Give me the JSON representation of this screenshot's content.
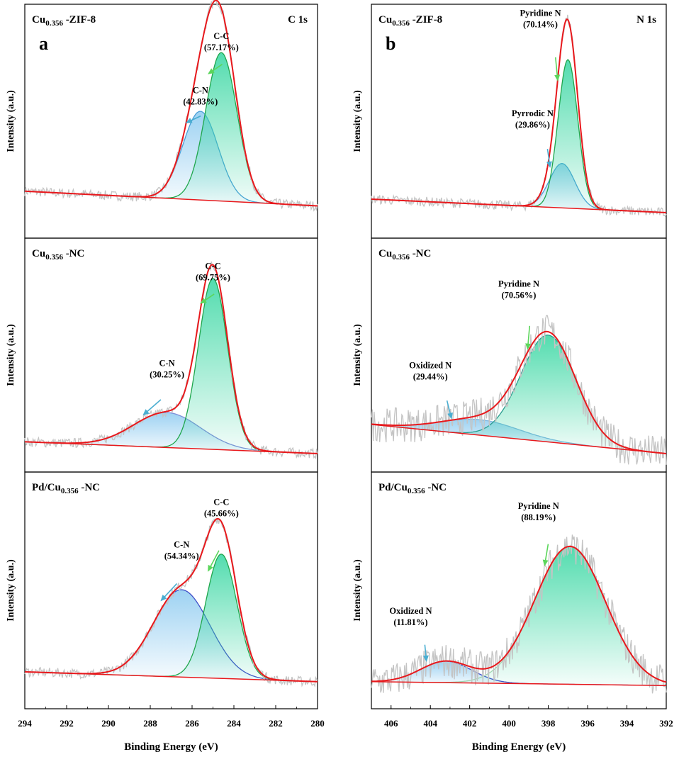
{
  "chart_data": [
    {
      "panel": "a",
      "type": "line",
      "spectrum": "C 1s",
      "xlabel": "Binding Energy (eV)",
      "ylabel": "Intensity (a.u.)",
      "xlim": [
        294,
        280
      ],
      "x_ticks": [
        "294",
        "292",
        "290",
        "288",
        "286",
        "284",
        "282",
        "280"
      ],
      "reversed_x": true,
      "subplots": [
        {
          "sample": "Cu0.356 -ZIF-8",
          "sample_main": "Cu",
          "sample_sub": "0.356",
          "sample_rest": " -ZIF-8",
          "background": [
            [
              293.8,
              0.11
            ],
            [
              280,
              0.035
            ]
          ],
          "envelope_peak": 0.98,
          "components": [
            {
              "name": "C-N",
              "label": "C-N",
              "percent": "(42.83%)",
              "center": 285.6,
              "sigma": 0.85,
              "height": 0.46,
              "color": "#4a9fd8",
              "fill": "#9fd0f2"
            },
            {
              "name": "C-C",
              "label": "C-C",
              "percent": "(57.17%)",
              "center": 284.6,
              "sigma": 0.75,
              "height": 0.77,
              "color": "#1fa64c",
              "fill": "#3dd9a0"
            }
          ],
          "annotations": [
            {
              "for": "C-N",
              "text_x": 285.6,
              "text_y": 0.62,
              "arrow_color": "#4aaed1"
            },
            {
              "for": "C-C",
              "text_x": 284.6,
              "text_y": 0.9,
              "arrow_color": "#5bd65b"
            }
          ]
        },
        {
          "sample": "Cu0.356 -NC",
          "sample_main": "Cu",
          "sample_sub": "0.356",
          "sample_rest": " -NC",
          "background": [
            [
              293.8,
              0.06
            ],
            [
              280,
              0.0
            ]
          ],
          "components": [
            {
              "name": "C-N",
              "label": "C-N",
              "percent": "(30.25%)",
              "center": 287.2,
              "sigma": 1.6,
              "height": 0.18,
              "color": "#7d8fd8",
              "fill": "#9fd0f2"
            },
            {
              "name": "C-C",
              "label": "C-C",
              "percent": "(69.75%)",
              "center": 285.0,
              "sigma": 0.7,
              "height": 0.88,
              "color": "#1fa64c",
              "fill": "#3dd9a0"
            }
          ],
          "annotations": [
            {
              "for": "C-N",
              "text_x": 287.2,
              "text_y": 0.45,
              "arrow_color": "#4aaed1"
            },
            {
              "for": "C-C",
              "text_x": 285.0,
              "text_y": 0.95,
              "arrow_color": "#5bd65b"
            }
          ]
        },
        {
          "sample": "Pd/Cu0.356 -NC",
          "sample_main": "Pd/Cu",
          "sample_sub": "0.356",
          "sample_rest": " -NC",
          "background": [
            [
              293.8,
              0.08
            ],
            [
              280,
              0.03
            ]
          ],
          "components": [
            {
              "name": "C-N",
              "label": "C-N",
              "percent": "(54.34%)",
              "center": 286.5,
              "sigma": 1.35,
              "height": 0.45,
              "color": "#3f4fc8",
              "fill": "#9fd0f2"
            },
            {
              "name": "C-C",
              "label": "C-C",
              "percent": "(45.66%)",
              "center": 284.6,
              "sigma": 0.75,
              "height": 0.64,
              "color": "#1fa64c",
              "fill": "#3dd9a0"
            }
          ],
          "annotations": [
            {
              "for": "C-N",
              "text_x": 286.5,
              "text_y": 0.72,
              "arrow_color": "#4aaed1"
            },
            {
              "for": "C-C",
              "text_x": 284.6,
              "text_y": 0.94,
              "arrow_color": "#5bd65b"
            }
          ]
        }
      ]
    },
    {
      "panel": "b",
      "type": "line",
      "spectrum": "N 1s",
      "xlabel": "Binding Energy (eV)",
      "ylabel": "Intensity (a.u.)",
      "xlim": [
        407,
        392
      ],
      "x_ticks": [
        "406",
        "404",
        "402",
        "400",
        "398",
        "396",
        "394",
        "392"
      ],
      "reversed_x": true,
      "subplots": [
        {
          "sample": "Cu0.356 -ZIF-8",
          "sample_main": "Cu",
          "sample_sub": "0.356",
          "sample_rest": " -ZIF-8",
          "background": [
            [
              407,
              0.07
            ],
            [
              392,
              0.0
            ]
          ],
          "components": [
            {
              "name": "Pyrrodic N",
              "label": "Pyrrodic N",
              "percent": "(29.86%)",
              "center": 397.3,
              "sigma": 0.65,
              "height": 0.23,
              "color": "#4a9fd8",
              "fill": "#9fd0f2"
            },
            {
              "name": "Pyridine N",
              "label": "Pyridine N",
              "percent": "(70.14%)",
              "center": 397.0,
              "sigma": 0.5,
              "height": 0.77,
              "color": "#1fa64c",
              "fill": "#3dd9a0"
            }
          ],
          "annotations": [
            {
              "for": "Pyrrodic N",
              "text_x": 398.8,
              "text_y": 0.5,
              "arrow_color": "#4aaed1"
            },
            {
              "for": "Pyridine N",
              "text_x": 398.4,
              "text_y": 1.02,
              "arrow_color": "#5bd65b"
            }
          ]
        },
        {
          "sample": "Cu0.356 -NC",
          "sample_main": "Cu",
          "sample_sub": "0.356",
          "sample_rest": " -NC",
          "background": [
            [
              407,
              0.15
            ],
            [
              392,
              0.0
            ]
          ],
          "components": [
            {
              "name": "Oxidized N",
              "label": "Oxidized N",
              "percent": "(29.44%)",
              "center": 401.5,
              "sigma": 2.0,
              "height": 0.08,
              "color": "#7db6e0",
              "fill": "#9fd0f2"
            },
            {
              "name": "Pyridine N",
              "label": "Pyridine N",
              "percent": "(70.56%)",
              "center": 398.0,
              "sigma": 1.4,
              "height": 0.55,
              "color": "#2a9d8f",
              "fill": "#3dd9a0"
            }
          ],
          "annotations": [
            {
              "for": "Oxidized N",
              "text_x": 404.0,
              "text_y": 0.44,
              "arrow_color": "#4aaed1"
            },
            {
              "for": "Pyridine N",
              "text_x": 399.5,
              "text_y": 0.86,
              "arrow_color": "#5bd65b"
            }
          ]
        },
        {
          "sample": "Pd/Cu0.356 -NC",
          "sample_main": "Pd/Cu",
          "sample_sub": "0.356",
          "sample_rest": " -NC",
          "background": [
            [
              407,
              0.03
            ],
            [
              392,
              0.01
            ]
          ],
          "components": [
            {
              "name": "Oxidized N",
              "label": "Oxidized N",
              "percent": "(11.81%)",
              "center": 403.2,
              "sigma": 1.3,
              "height": 0.11,
              "color": "#3f4fc8",
              "fill": "#9fd0f2"
            },
            {
              "name": "Pyridine N",
              "label": "Pyridine N",
              "percent": "(88.19%)",
              "center": 396.9,
              "sigma": 1.8,
              "height": 0.71,
              "color": "#9fd6b0",
              "fill": "#3dd9a0"
            }
          ],
          "annotations": [
            {
              "for": "Oxidized N",
              "text_x": 405.0,
              "text_y": 0.38,
              "arrow_color": "#4aaed1"
            },
            {
              "for": "Pyridine N",
              "text_x": 398.5,
              "text_y": 0.92,
              "arrow_color": "#5bd65b"
            }
          ]
        }
      ]
    }
  ],
  "colors": {
    "envelope": "#e8181c",
    "raw": "#c4c4c4",
    "frame": "#000000"
  }
}
